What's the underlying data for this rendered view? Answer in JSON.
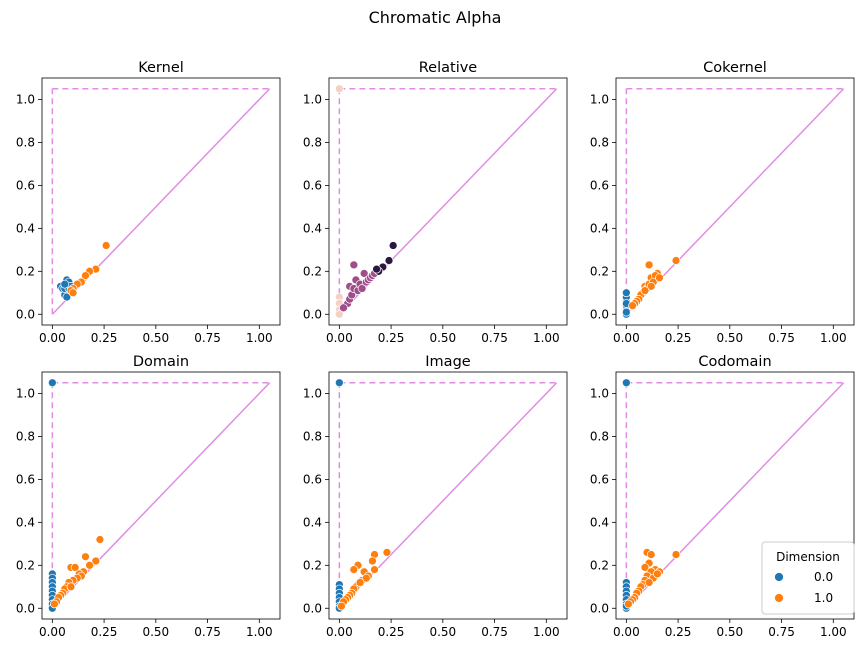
{
  "figure": {
    "title": "Chromatic Alpha"
  },
  "legend": {
    "title": "Dimension",
    "entries": [
      {
        "label": "0.0",
        "color": "#1f77b4"
      },
      {
        "label": "1.0",
        "color": "#ff7f0e"
      }
    ]
  },
  "colors": {
    "diagonal": "#e08de3",
    "infinity_line": "#e08de3"
  },
  "chart_data": [
    {
      "type": "scatter",
      "title": "Kernel",
      "xlim": [
        -0.05,
        1.1
      ],
      "ylim": [
        -0.05,
        1.1
      ],
      "xticks": [
        "0.00",
        "0.25",
        "0.50",
        "0.75",
        "1.00"
      ],
      "yticks": [
        "0.0",
        "0.2",
        "0.4",
        "0.6",
        "0.8",
        "1.0"
      ],
      "infinity": 1.05,
      "series": [
        {
          "name": "0.0",
          "color": "#1f77b4",
          "points": [
            [
              0.04,
              0.13
            ],
            [
              0.05,
              0.12
            ],
            [
              0.06,
              0.09
            ],
            [
              0.06,
              0.12
            ],
            [
              0.07,
              0.16
            ],
            [
              0.07,
              0.14
            ],
            [
              0.08,
              0.15
            ],
            [
              0.07,
              0.08
            ],
            [
              0.08,
              0.12
            ],
            [
              0.09,
              0.13
            ],
            [
              0.06,
              0.14
            ]
          ]
        },
        {
          "name": "1.0",
          "color": "#ff7f0e",
          "points": [
            [
              0.26,
              0.32
            ],
            [
              0.21,
              0.21
            ],
            [
              0.18,
              0.2
            ],
            [
              0.16,
              0.18
            ],
            [
              0.14,
              0.15
            ],
            [
              0.12,
              0.14
            ],
            [
              0.1,
              0.12
            ],
            [
              0.09,
              0.11
            ],
            [
              0.1,
              0.1
            ]
          ]
        }
      ]
    },
    {
      "type": "scatter",
      "title": "Relative",
      "xlim": [
        -0.05,
        1.1
      ],
      "ylim": [
        -0.05,
        1.1
      ],
      "xticks": [
        "0.00",
        "0.25",
        "0.50",
        "0.75",
        "1.00"
      ],
      "yticks": [
        "0.0",
        "0.2",
        "0.4",
        "0.6",
        "0.8",
        "1.0"
      ],
      "infinity": 1.05,
      "series": [
        {
          "name": "",
          "color": "#f5d1c5",
          "points": [
            [
              0.0,
              1.05
            ],
            [
              0.0,
              0.08
            ],
            [
              0.0,
              0.05
            ],
            [
              0.0,
              0.02
            ],
            [
              0.0,
              0.0
            ]
          ]
        },
        {
          "name": "",
          "color": "#a04d8b",
          "points": [
            [
              0.03,
              0.04
            ],
            [
              0.04,
              0.05
            ],
            [
              0.05,
              0.07
            ],
            [
              0.05,
              0.13
            ],
            [
              0.06,
              0.09
            ],
            [
              0.07,
              0.23
            ],
            [
              0.07,
              0.12
            ],
            [
              0.08,
              0.16
            ],
            [
              0.09,
              0.11
            ],
            [
              0.1,
              0.14
            ],
            [
              0.11,
              0.12
            ],
            [
              0.12,
              0.19
            ],
            [
              0.13,
              0.15
            ],
            [
              0.14,
              0.16
            ],
            [
              0.15,
              0.17
            ],
            [
              0.16,
              0.18
            ],
            [
              0.17,
              0.19
            ],
            [
              0.02,
              0.03
            ]
          ]
        },
        {
          "name": "",
          "color": "#2b1840",
          "points": [
            [
              0.26,
              0.32
            ],
            [
              0.24,
              0.25
            ],
            [
              0.21,
              0.22
            ],
            [
              0.19,
              0.2
            ],
            [
              0.18,
              0.21
            ]
          ]
        }
      ]
    },
    {
      "type": "scatter",
      "title": "Cokernel",
      "xlim": [
        -0.05,
        1.1
      ],
      "ylim": [
        -0.05,
        1.1
      ],
      "xticks": [
        "0.00",
        "0.25",
        "0.50",
        "0.75",
        "1.00"
      ],
      "yticks": [
        "0.0",
        "0.2",
        "0.4",
        "0.6",
        "0.8",
        "1.0"
      ],
      "infinity": 1.05,
      "series": [
        {
          "name": "0.0",
          "color": "#1f77b4",
          "points": [
            [
              0.0,
              0.0
            ],
            [
              0.0,
              0.02
            ],
            [
              0.0,
              0.04
            ],
            [
              0.0,
              0.06
            ],
            [
              0.0,
              0.08
            ],
            [
              0.0,
              0.1
            ],
            [
              0.0,
              0.05
            ],
            [
              0.0,
              0.01
            ]
          ]
        },
        {
          "name": "1.0",
          "color": "#ff7f0e",
          "points": [
            [
              0.24,
              0.25
            ],
            [
              0.11,
              0.23
            ],
            [
              0.15,
              0.19
            ],
            [
              0.12,
              0.17
            ],
            [
              0.14,
              0.18
            ],
            [
              0.09,
              0.13
            ],
            [
              0.1,
              0.12
            ],
            [
              0.08,
              0.1
            ],
            [
              0.07,
              0.09
            ],
            [
              0.06,
              0.07
            ],
            [
              0.05,
              0.06
            ],
            [
              0.04,
              0.05
            ],
            [
              0.11,
              0.14
            ],
            [
              0.13,
              0.15
            ],
            [
              0.16,
              0.17
            ],
            [
              0.12,
              0.13
            ],
            [
              0.09,
              0.11
            ],
            [
              0.03,
              0.04
            ]
          ]
        }
      ]
    },
    {
      "type": "scatter",
      "title": "Domain",
      "xlim": [
        -0.05,
        1.1
      ],
      "ylim": [
        -0.05,
        1.1
      ],
      "xticks": [
        "0.00",
        "0.25",
        "0.50",
        "0.75",
        "1.00"
      ],
      "yticks": [
        "0.0",
        "0.2",
        "0.4",
        "0.6",
        "0.8",
        "1.0"
      ],
      "infinity": 1.05,
      "series": [
        {
          "name": "0.0",
          "color": "#1f77b4",
          "points": [
            [
              0.0,
              1.05
            ],
            [
              0.0,
              0.16
            ],
            [
              0.0,
              0.14
            ],
            [
              0.0,
              0.12
            ],
            [
              0.0,
              0.1
            ],
            [
              0.0,
              0.08
            ],
            [
              0.0,
              0.06
            ],
            [
              0.0,
              0.04
            ],
            [
              0.0,
              0.02
            ],
            [
              0.0,
              0.0
            ]
          ]
        },
        {
          "name": "1.0",
          "color": "#ff7f0e",
          "points": [
            [
              0.23,
              0.32
            ],
            [
              0.16,
              0.24
            ],
            [
              0.21,
              0.22
            ],
            [
              0.18,
              0.2
            ],
            [
              0.09,
              0.19
            ],
            [
              0.11,
              0.19
            ],
            [
              0.15,
              0.17
            ],
            [
              0.13,
              0.16
            ],
            [
              0.14,
              0.15
            ],
            [
              0.12,
              0.14
            ],
            [
              0.1,
              0.13
            ],
            [
              0.08,
              0.12
            ],
            [
              0.07,
              0.1
            ],
            [
              0.06,
              0.09
            ],
            [
              0.05,
              0.07
            ],
            [
              0.04,
              0.06
            ],
            [
              0.03,
              0.05
            ],
            [
              0.02,
              0.03
            ],
            [
              0.01,
              0.02
            ],
            [
              0.09,
              0.1
            ]
          ]
        }
      ]
    },
    {
      "type": "scatter",
      "title": "Image",
      "xlim": [
        -0.05,
        1.1
      ],
      "ylim": [
        -0.05,
        1.1
      ],
      "xticks": [
        "0.00",
        "0.25",
        "0.50",
        "0.75",
        "1.00"
      ],
      "yticks": [
        "0.0",
        "0.2",
        "0.4",
        "0.6",
        "0.8",
        "1.0"
      ],
      "infinity": 1.05,
      "series": [
        {
          "name": "0.0",
          "color": "#1f77b4",
          "points": [
            [
              0.0,
              1.05
            ],
            [
              0.0,
              0.11
            ],
            [
              0.0,
              0.09
            ],
            [
              0.0,
              0.07
            ],
            [
              0.0,
              0.05
            ],
            [
              0.0,
              0.03
            ],
            [
              0.0,
              0.01
            ],
            [
              0.0,
              0.0
            ]
          ]
        },
        {
          "name": "1.0",
          "color": "#ff7f0e",
          "points": [
            [
              0.23,
              0.26
            ],
            [
              0.17,
              0.25
            ],
            [
              0.16,
              0.22
            ],
            [
              0.09,
              0.2
            ],
            [
              0.07,
              0.18
            ],
            [
              0.12,
              0.17
            ],
            [
              0.17,
              0.18
            ],
            [
              0.14,
              0.15
            ],
            [
              0.11,
              0.13
            ],
            [
              0.09,
              0.11
            ],
            [
              0.08,
              0.1
            ],
            [
              0.07,
              0.09
            ],
            [
              0.06,
              0.07
            ],
            [
              0.05,
              0.06
            ],
            [
              0.04,
              0.05
            ],
            [
              0.03,
              0.04
            ],
            [
              0.02,
              0.03
            ],
            [
              0.01,
              0.01
            ],
            [
              0.13,
              0.14
            ],
            [
              0.1,
              0.12
            ]
          ]
        }
      ]
    },
    {
      "type": "scatter",
      "title": "Codomain",
      "xlim": [
        -0.05,
        1.1
      ],
      "ylim": [
        -0.05,
        1.1
      ],
      "xticks": [
        "0.00",
        "0.25",
        "0.50",
        "0.75",
        "1.00"
      ],
      "yticks": [
        "0.0",
        "0.2",
        "0.4",
        "0.6",
        "0.8",
        "1.0"
      ],
      "infinity": 1.05,
      "legend": "lower right",
      "series": [
        {
          "name": "0.0",
          "color": "#1f77b4",
          "points": [
            [
              0.0,
              1.05
            ],
            [
              0.0,
              0.12
            ],
            [
              0.0,
              0.1
            ],
            [
              0.0,
              0.08
            ],
            [
              0.0,
              0.06
            ],
            [
              0.0,
              0.04
            ],
            [
              0.0,
              0.02
            ],
            [
              0.0,
              0.0
            ],
            [
              0.0,
              0.01
            ]
          ]
        },
        {
          "name": "1.0",
          "color": "#ff7f0e",
          "points": [
            [
              0.24,
              0.25
            ],
            [
              0.1,
              0.26
            ],
            [
              0.12,
              0.25
            ],
            [
              0.11,
              0.21
            ],
            [
              0.09,
              0.19
            ],
            [
              0.14,
              0.18
            ],
            [
              0.12,
              0.17
            ],
            [
              0.16,
              0.17
            ],
            [
              0.1,
              0.15
            ],
            [
              0.13,
              0.14
            ],
            [
              0.09,
              0.13
            ],
            [
              0.08,
              0.11
            ],
            [
              0.07,
              0.1
            ],
            [
              0.06,
              0.08
            ],
            [
              0.05,
              0.07
            ],
            [
              0.04,
              0.05
            ],
            [
              0.03,
              0.04
            ],
            [
              0.02,
              0.03
            ],
            [
              0.01,
              0.02
            ],
            [
              0.11,
              0.12
            ],
            [
              0.15,
              0.16
            ]
          ]
        }
      ]
    }
  ]
}
